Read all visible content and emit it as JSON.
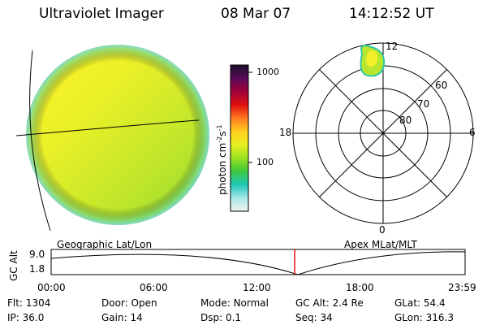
{
  "header": {
    "title": "Ultraviolet Imager",
    "date": "08 Mar 07",
    "time": "14:12:52 UT"
  },
  "colorbar": {
    "unit_text": "photon cm",
    "unit_exp1": "-2",
    "unit_s": "s",
    "unit_exp2": "-1",
    "tick_high": "1000",
    "tick_mid": "100",
    "colors": [
      "#1a0f2a",
      "#5a0a5a",
      "#a0003a",
      "#e01010",
      "#ff7a20",
      "#ffd020",
      "#e8f020",
      "#9be020",
      "#3ec83e",
      "#20c8b8",
      "#a8e8e8",
      "#f0f0f0"
    ]
  },
  "polar_plot": {
    "mlt_labels": {
      "top": "12",
      "left": "18",
      "right": "6",
      "bottom": "0"
    },
    "mlat_labels": [
      "60",
      "70",
      "80"
    ]
  },
  "footer_labels": {
    "left": "Geographic Lat/Lon",
    "right": "Apex MLat/MLT"
  },
  "altitude_track": {
    "axis_label": "GC Alt",
    "y_ticks": [
      "9.0",
      "1.8"
    ],
    "x_ticks": [
      "00:00",
      "06:00",
      "12:00",
      "18:00",
      "23:59"
    ],
    "marker_time": "14:12:52"
  },
  "info": {
    "row1": [
      {
        "label": "Flt:",
        "value": "1304"
      },
      {
        "label": "Door:",
        "value": "Open"
      },
      {
        "label": "Mode:",
        "value": "Normal"
      },
      {
        "label": "GC Alt:",
        "value": "2.4 Re"
      },
      {
        "label": "GLat:",
        "value": "54.4"
      }
    ],
    "row2": [
      {
        "label": "IP:",
        "value": "36.0"
      },
      {
        "label": "Gain:",
        "value": "14"
      },
      {
        "label": "Dsp:",
        "value": "0.1"
      },
      {
        "label": "Seq:",
        "value": "34"
      },
      {
        "label": "GLon:",
        "value": "316.3"
      }
    ]
  }
}
